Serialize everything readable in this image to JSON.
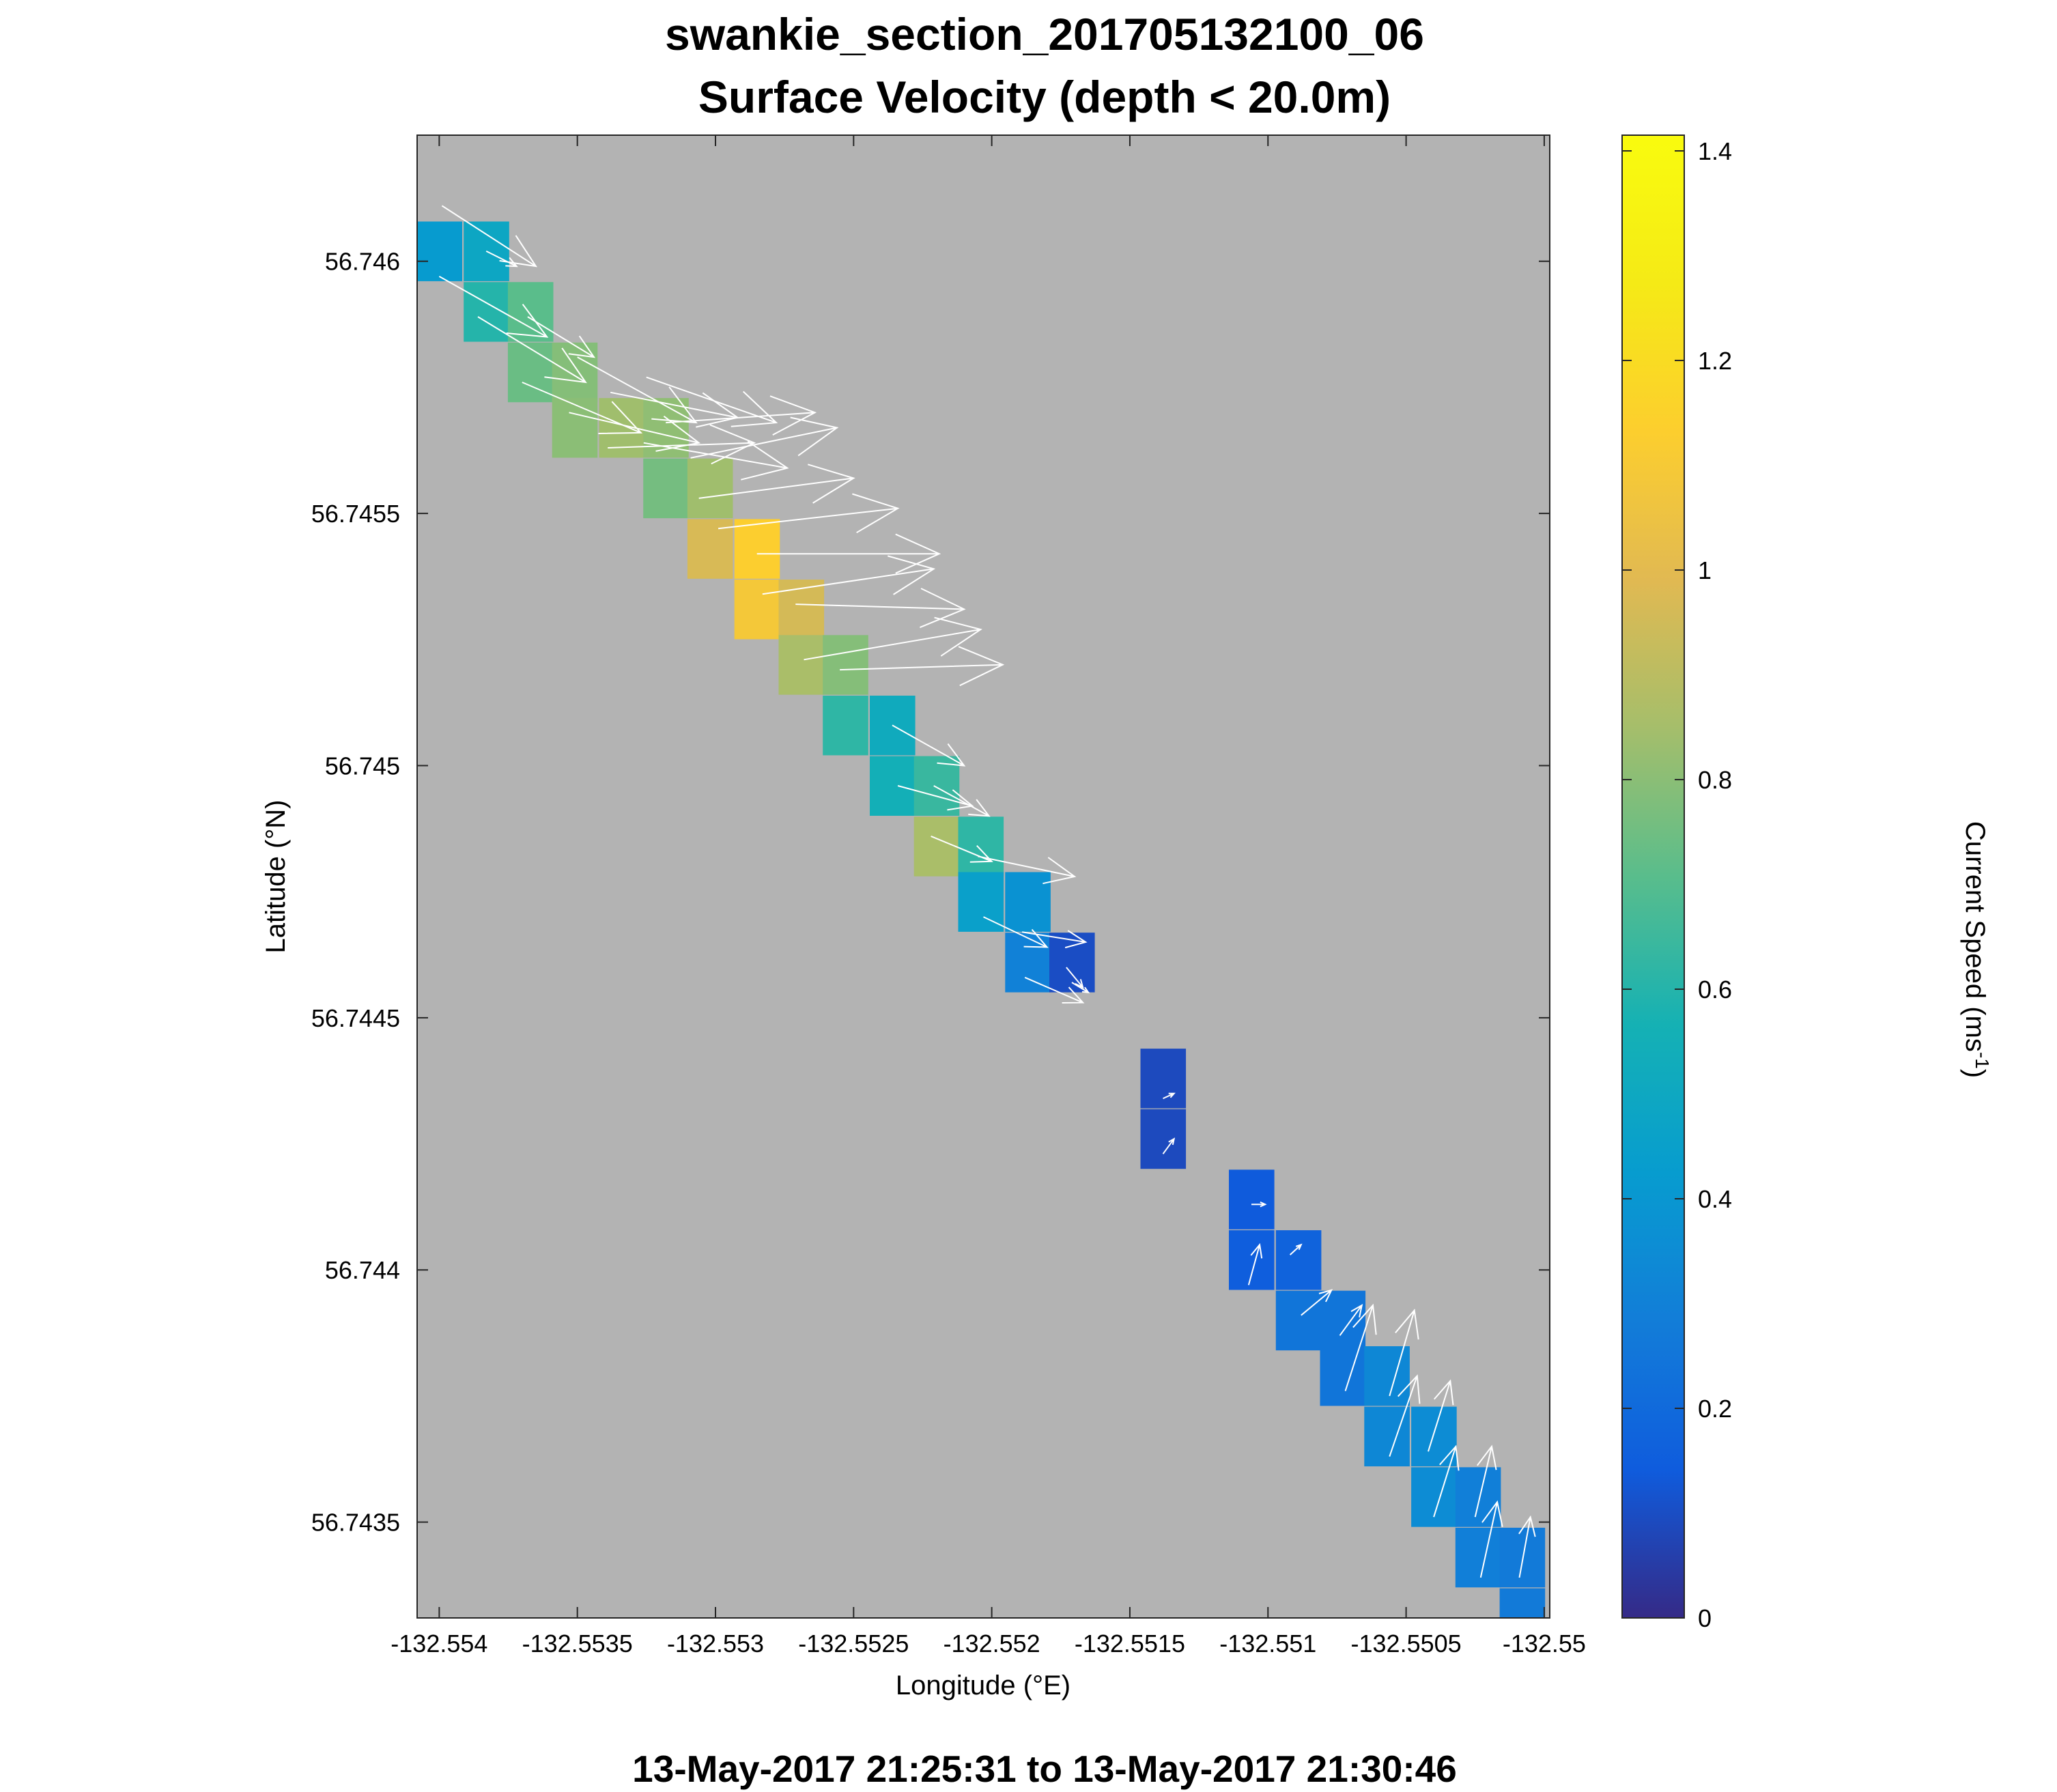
{
  "chart_data": {
    "type": "heatmap",
    "title": "swankie_section_201705132100_06",
    "subtitle": "Surface Velocity (depth < 20.0m)",
    "xlabel": "Longitude (°E)",
    "ylabel": "Latitude (°N)",
    "footer": "13-May-2017 21:25:31 to 13-May-2017 21:30:46",
    "xlim": [
      -132.55408,
      -132.54998
    ],
    "ylim": [
      56.74331,
      56.74625
    ],
    "x_ticks": [
      -132.554,
      -132.5535,
      -132.553,
      -132.5525,
      -132.552,
      -132.5515,
      -132.551,
      -132.5505,
      -132.55
    ],
    "x_tick_labels": [
      "-132.554",
      "-132.5535",
      "-132.553",
      "-132.5525",
      "-132.552",
      "-132.5515",
      "-132.551",
      "-132.5505",
      "-132.55"
    ],
    "y_ticks": [
      56.746,
      56.7455,
      56.745,
      56.7445,
      56.744,
      56.7435
    ],
    "y_tick_labels": [
      "56.746",
      "56.7455",
      "56.745",
      "56.7445",
      "56.744",
      "56.7435"
    ],
    "background_color": "#b3b3b3",
    "colormap": "parula",
    "colorbar": {
      "label": "Current Speed (ms",
      "label_exp": "-1",
      "label_close": ")",
      "min": 0,
      "max": 1.415,
      "ticks": [
        0,
        0.2,
        0.4,
        0.6,
        0.8,
        1,
        1.2,
        1.4
      ],
      "tick_labels": [
        "0",
        "0.2",
        "0.4",
        "0.6",
        "0.8",
        "1",
        "1.2",
        "1.4"
      ]
    },
    "cell_size": {
      "dlon": 0.000163,
      "dlat": 0.0001175
    },
    "cells": [
      {
        "lon": -132.554,
        "lat": 56.74602,
        "speed": 0.42
      },
      {
        "lon": -132.55383,
        "lat": 56.74602,
        "speed": 0.49
      },
      {
        "lon": -132.55383,
        "lat": 56.7459,
        "speed": 0.6
      },
      {
        "lon": -132.55367,
        "lat": 56.7459,
        "speed": 0.71
      },
      {
        "lon": -132.55367,
        "lat": 56.74578,
        "speed": 0.74
      },
      {
        "lon": -132.55351,
        "lat": 56.74578,
        "speed": 0.79
      },
      {
        "lon": -132.55351,
        "lat": 56.74567,
        "speed": 0.8
      },
      {
        "lon": -132.55334,
        "lat": 56.74567,
        "speed": 0.84
      },
      {
        "lon": -132.55318,
        "lat": 56.74567,
        "speed": 0.81
      },
      {
        "lon": -132.55318,
        "lat": 56.74555,
        "speed": 0.76
      },
      {
        "lon": -132.55302,
        "lat": 56.74555,
        "speed": 0.84
      },
      {
        "lon": -132.55302,
        "lat": 56.74543,
        "speed": 0.97
      },
      {
        "lon": -132.55285,
        "lat": 56.74543,
        "speed": 1.13
      },
      {
        "lon": -132.55285,
        "lat": 56.74531,
        "speed": 1.09
      },
      {
        "lon": -132.55269,
        "lat": 56.74531,
        "speed": 0.96
      },
      {
        "lon": -132.55269,
        "lat": 56.7452,
        "speed": 0.86
      },
      {
        "lon": -132.55253,
        "lat": 56.7452,
        "speed": 0.79
      },
      {
        "lon": -132.55253,
        "lat": 56.74508,
        "speed": 0.62
      },
      {
        "lon": -132.55236,
        "lat": 56.74508,
        "speed": 0.52
      },
      {
        "lon": -132.55236,
        "lat": 56.74496,
        "speed": 0.55
      },
      {
        "lon": -132.5522,
        "lat": 56.74496,
        "speed": 0.64
      },
      {
        "lon": -132.5522,
        "lat": 56.74484,
        "speed": 0.86
      },
      {
        "lon": -132.55204,
        "lat": 56.74484,
        "speed": 0.62
      },
      {
        "lon": -132.55204,
        "lat": 56.74473,
        "speed": 0.45
      },
      {
        "lon": -132.55187,
        "lat": 56.74473,
        "speed": 0.38
      },
      {
        "lon": -132.55187,
        "lat": 56.74461,
        "speed": 0.3
      },
      {
        "lon": -132.55171,
        "lat": 56.74461,
        "speed": 0.1
      },
      {
        "lon": -132.55138,
        "lat": 56.74438,
        "speed": 0.09
      },
      {
        "lon": -132.55138,
        "lat": 56.74426,
        "speed": 0.09
      },
      {
        "lon": -132.55106,
        "lat": 56.74414,
        "speed": 0.14
      },
      {
        "lon": -132.55106,
        "lat": 56.74402,
        "speed": 0.15
      },
      {
        "lon": -132.55089,
        "lat": 56.74402,
        "speed": 0.17
      },
      {
        "lon": -132.55089,
        "lat": 56.7439,
        "speed": 0.25
      },
      {
        "lon": -132.55073,
        "lat": 56.7439,
        "speed": 0.25
      },
      {
        "lon": -132.55073,
        "lat": 56.74379,
        "speed": 0.25
      },
      {
        "lon": -132.55057,
        "lat": 56.74379,
        "speed": 0.33
      },
      {
        "lon": -132.55057,
        "lat": 56.74367,
        "speed": 0.33
      },
      {
        "lon": -132.5504,
        "lat": 56.74367,
        "speed": 0.35
      },
      {
        "lon": -132.5504,
        "lat": 56.74355,
        "speed": 0.35
      },
      {
        "lon": -132.55024,
        "lat": 56.74355,
        "speed": 0.29
      },
      {
        "lon": -132.55024,
        "lat": 56.74343,
        "speed": 0.29
      },
      {
        "lon": -132.55008,
        "lat": 56.74343,
        "speed": 0.27
      },
      {
        "lon": -132.55008,
        "lat": 56.74331,
        "speed": 0.27
      }
    ],
    "vectors": [
      {
        "lon": -132.55399,
        "lat": 56.74611,
        "u": 0.00034,
        "v": -0.00012
      },
      {
        "lon": -132.554,
        "lat": 56.74597,
        "u": 0.00039,
        "v": -0.00012
      },
      {
        "lon": -132.55386,
        "lat": 56.74589,
        "u": 0.00039,
        "v": -0.00013
      },
      {
        "lon": -132.55383,
        "lat": 56.74602,
        "u": 0.00011,
        "v": -3e-05
      },
      {
        "lon": -132.55368,
        "lat": 56.74589,
        "u": 0.00024,
        "v": -8e-05
      },
      {
        "lon": -132.5537,
        "lat": 56.74576,
        "u": 0.00043,
        "v": -0.0001
      },
      {
        "lon": -132.55353,
        "lat": 56.7457,
        "u": 0.00047,
        "v": -6e-05
      },
      {
        "lon": -132.5535,
        "lat": 56.74581,
        "u": 0.00043,
        "v": -0.00013
      },
      {
        "lon": -132.55338,
        "lat": 56.74574,
        "u": 0.00046,
        "v": -5e-05
      },
      {
        "lon": -132.55339,
        "lat": 56.74563,
        "u": 0.00053,
        "v": 1e-05
      },
      {
        "lon": -132.55326,
        "lat": 56.74564,
        "u": 0.00052,
        "v": -5e-05
      },
      {
        "lon": -132.55325,
        "lat": 56.74577,
        "u": 0.00047,
        "v": -9e-05
      },
      {
        "lon": -132.55318,
        "lat": 56.74568,
        "u": 0.00054,
        "v": 2e-05
      },
      {
        "lon": -132.55306,
        "lat": 56.74553,
        "u": 0.00056,
        "v": 4e-05
      },
      {
        "lon": -132.55309,
        "lat": 56.74561,
        "u": 0.00053,
        "v": 6e-05
      },
      {
        "lon": -132.55299,
        "lat": 56.74547,
        "u": 0.00065,
        "v": 4e-05
      },
      {
        "lon": -132.55285,
        "lat": 56.74542,
        "u": 0.00066,
        "v": -0.0
      },
      {
        "lon": -132.55283,
        "lat": 56.74534,
        "u": 0.00062,
        "v": 5e-05
      },
      {
        "lon": -132.55271,
        "lat": 56.74532,
        "u": 0.00061,
        "v": -1e-05
      },
      {
        "lon": -132.55268,
        "lat": 56.74521,
        "u": 0.00064,
        "v": 6e-05
      },
      {
        "lon": -132.55255,
        "lat": 56.74519,
        "u": 0.00059,
        "v": 1e-05
      },
      {
        "lon": -132.55236,
        "lat": 56.74508,
        "u": 0.00026,
        "v": -8e-05
      },
      {
        "lon": -132.55234,
        "lat": 56.74496,
        "u": 0.00027,
        "v": -4e-05
      },
      {
        "lon": -132.55221,
        "lat": 56.74496,
        "u": 0.0002,
        "v": -6e-05
      },
      {
        "lon": -132.55222,
        "lat": 56.74486,
        "u": 0.00022,
        "v": -5e-05
      },
      {
        "lon": -132.55205,
        "lat": 56.74482,
        "u": 0.00035,
        "v": -4e-05
      },
      {
        "lon": -132.55203,
        "lat": 56.7447,
        "u": 0.00023,
        "v": -6e-05
      },
      {
        "lon": -132.55189,
        "lat": 56.74467,
        "u": 0.00023,
        "v": -2e-05
      },
      {
        "lon": -132.55188,
        "lat": 56.74458,
        "u": 0.00021,
        "v": -5e-05
      },
      {
        "lon": -132.55173,
        "lat": 56.7446,
        "u": 6e-05,
        "v": -4e-05
      },
      {
        "lon": -132.55171,
        "lat": 56.74457,
        "u": 6e-05,
        "v": -2e-05
      },
      {
        "lon": -132.55138,
        "lat": 56.74434,
        "u": 4e-05,
        "v": 1e-05
      },
      {
        "lon": -132.55138,
        "lat": 56.74423,
        "u": 4e-05,
        "v": 3e-05
      },
      {
        "lon": -132.55106,
        "lat": 56.74413,
        "u": 5e-05,
        "v": 0.0
      },
      {
        "lon": -132.55107,
        "lat": 56.74397,
        "u": 4e-05,
        "v": 8e-05
      },
      {
        "lon": -132.55092,
        "lat": 56.74403,
        "u": 4e-05,
        "v": 2e-05
      },
      {
        "lon": -132.55088,
        "lat": 56.74391,
        "u": 0.00011,
        "v": 5e-05
      },
      {
        "lon": -132.55074,
        "lat": 56.74387,
        "u": 8e-05,
        "v": 6e-05
      },
      {
        "lon": -132.55072,
        "lat": 56.74376,
        "u": 0.0001,
        "v": 0.00017
      },
      {
        "lon": -132.55056,
        "lat": 56.74375,
        "u": 9e-05,
        "v": 0.00017
      },
      {
        "lon": -132.55056,
        "lat": 56.74363,
        "u": 0.0001,
        "v": 0.00016
      },
      {
        "lon": -132.55042,
        "lat": 56.74364,
        "u": 8e-05,
        "v": 0.00014
      },
      {
        "lon": -132.5504,
        "lat": 56.74351,
        "u": 8e-05,
        "v": 0.00014
      },
      {
        "lon": -132.55025,
        "lat": 56.74351,
        "u": 6e-05,
        "v": 0.00014
      },
      {
        "lon": -132.55023,
        "lat": 56.74339,
        "u": 6e-05,
        "v": 0.00015
      },
      {
        "lon": -132.55009,
        "lat": 56.74339,
        "u": 4e-05,
        "v": 0.00012
      }
    ]
  }
}
